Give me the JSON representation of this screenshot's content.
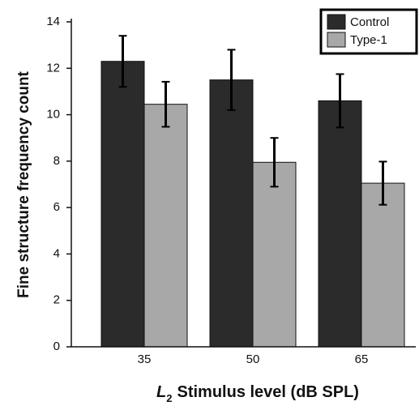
{
  "chart_data": {
    "type": "bar",
    "y_label": "Fine structure frequency count",
    "x_label": {
      "variable": "L",
      "subscript": "2",
      "text": "Stimulus level (dB SPL)"
    },
    "categories": [
      "35",
      "50",
      "65"
    ],
    "series": [
      {
        "name": "Control",
        "color": "#2b2b2b",
        "values": [
          12.3,
          11.5,
          10.6
        ],
        "errors": [
          1.1,
          1.3,
          1.15
        ]
      },
      {
        "name": "Type-1",
        "color": "#a8a8a8",
        "values": [
          10.45,
          7.95,
          7.05
        ],
        "errors": [
          0.97,
          1.05,
          0.93
        ]
      }
    ],
    "ylim": [
      0,
      14
    ],
    "yticks": [
      0,
      2,
      4,
      6,
      8,
      10,
      12,
      14
    ],
    "legend": "top-right"
  }
}
